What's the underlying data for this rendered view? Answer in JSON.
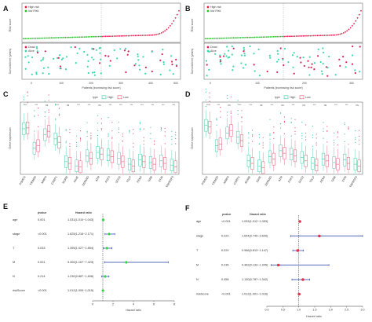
{
  "panels": {
    "A": {
      "label": "A",
      "top": {
        "ylabel": "Risk score",
        "legend": [
          "High risk",
          "low Risk"
        ],
        "xlabel": "Patients (increasing risk socre)",
        "xticks": [
          "0",
          "100",
          "200",
          "300",
          "400",
          "500"
        ]
      },
      "bottom": {
        "ylabel": "Survival time (years)",
        "legend": [
          "Dead",
          "Alive"
        ]
      }
    },
    "B": {
      "label": "B",
      "top": {
        "ylabel": "Risk score",
        "legend": [
          "High risk",
          "low Risk"
        ],
        "xlabel": "Patients (increasing risk socre)",
        "xticks": [
          "0",
          "100",
          "200",
          "300"
        ]
      },
      "bottom": {
        "ylabel": "Survival time (years)",
        "legend": [
          "Dead",
          "Alive"
        ]
      }
    },
    "C": {
      "label": "C",
      "ylabel": "Gene expression",
      "legend_title": "type",
      "legend": [
        "High",
        "Low"
      ]
    },
    "D": {
      "label": "D",
      "ylabel": "Gene expression",
      "legend_title": "type",
      "legend": [
        "High",
        "Low"
      ]
    },
    "E": {
      "label": "E",
      "head_p": "pvalue",
      "head_hr": "Hazard ratio",
      "xlabel": "Hazard ratio",
      "xticks": [
        "0",
        "2",
        "4",
        "6",
        "8"
      ]
    },
    "F": {
      "label": "F",
      "head_p": "pvalue",
      "head_hr": "Hazard ratio",
      "xlabel": "Hazard ratio",
      "xticks": [
        "0.0",
        "0.5",
        "1.0",
        "1.5",
        "2.0",
        "2.5",
        "3.0"
      ]
    }
  },
  "genes": [
    "PSMD2",
    "TRIM26",
    "MMP9",
    "CSRP1",
    "RORB",
    "IGHE",
    "SERMID",
    "ATM",
    "FGF3",
    "SCG2",
    "TSLP",
    "FEN4",
    "GRB",
    "STIN",
    "TNFRSF9"
  ],
  "colors": {
    "high": "#e31a4a",
    "low": "#2db82d",
    "alive": "#3ed6b0",
    "dead": "#d6245a",
    "forest_e": "#2fcf3f",
    "forest_f": "#e0324a",
    "ci": "#1f3aa8",
    "boxC_high": "#3cc8a8",
    "boxC_low": "#e05870"
  },
  "chart_data": [
    {
      "panel": "A",
      "type": "scatter",
      "ylabel": "Risk score",
      "xlabel": "Patients (increasing risk socre)",
      "xlim": [
        0,
        510
      ],
      "ylim": [
        0,
        14
      ],
      "cutoff": 255,
      "n": 510,
      "legend": [
        "High risk",
        "low Risk"
      ]
    },
    {
      "panel": "B",
      "type": "scatter",
      "ylabel": "Risk score",
      "xlabel": "Patients (increasing risk socre)",
      "xlim": [
        0,
        330
      ],
      "ylim": [
        0,
        14
      ],
      "cutoff": 165,
      "n": 330,
      "legend": [
        "High risk",
        "low Risk"
      ]
    },
    {
      "panel": "C",
      "type": "box",
      "ylabel": "Gene expression",
      "legend": [
        "High",
        "Low"
      ],
      "categories": [
        "PSMD2",
        "TRIM26",
        "MMP9",
        "CSRP1",
        "RORB",
        "IGHE",
        "SERMID",
        "ATM",
        "FGF3",
        "SCG2",
        "TSLP",
        "FEN4",
        "GRB",
        "STIN",
        "TNFRSF9"
      ],
      "series": [
        {
          "name": "High",
          "medians": [
            5.4,
            3.1,
            4.7,
            4.2,
            1.5,
            1.0,
            2.2,
            2.6,
            2.3,
            1.9,
            1.2,
            1.7,
            1.4,
            1.6,
            1.1
          ]
        },
        {
          "name": "Low",
          "medians": [
            5.5,
            3.4,
            5.1,
            3.8,
            1.3,
            0.9,
            1.9,
            2.4,
            2.1,
            1.5,
            1.0,
            1.5,
            1.2,
            1.3,
            0.9
          ]
        }
      ],
      "significance": [
        "***",
        "***",
        "ns",
        "***",
        "ns",
        "***",
        "***",
        "ns",
        "***",
        "***",
        "***",
        "***",
        "***",
        "***",
        "***"
      ]
    },
    {
      "panel": "D",
      "type": "box",
      "ylabel": "Gene expression",
      "legend": [
        "High",
        "Low"
      ],
      "categories": [
        "PSMD2",
        "TRIM26",
        "MMP9",
        "CSRP1",
        "RORB",
        "IGHE",
        "SERMID",
        "ATM",
        "FGF3",
        "SCG2",
        "TSLP",
        "FEN4",
        "GRB",
        "STIN",
        "TNFRSF9"
      ],
      "series": [
        {
          "name": "High",
          "medians": [
            5.8,
            3.4,
            4.9,
            4.4,
            1.6,
            1.0,
            2.1,
            2.8,
            2.4,
            2.0,
            1.3,
            1.8,
            1.4,
            1.7,
            1.2
          ]
        },
        {
          "name": "Low",
          "medians": [
            5.6,
            3.6,
            5.2,
            4.0,
            1.3,
            0.8,
            1.8,
            2.5,
            2.2,
            1.6,
            1.1,
            1.6,
            1.2,
            1.3,
            1.0
          ]
        }
      ],
      "significance": [
        "***",
        "***",
        "ns",
        "***",
        "***",
        "ns",
        "***",
        "ns",
        "***",
        "ns",
        "***",
        "ns",
        "***",
        "***",
        "ns"
      ]
    },
    {
      "panel": "E",
      "type": "forest",
      "xlabel": "Hazard ratio",
      "xlim": [
        0,
        8
      ],
      "ref": 1,
      "rows": [
        {
          "var": "age",
          "p": "0.001",
          "hr_text": "1.031(1.010~1.043)",
          "hr": 1.031,
          "lo": 1.01,
          "hi": 1.043
        },
        {
          "var": "stage",
          "p": "<0.001",
          "hr_text": "1.625(1.216~2.171)",
          "hr": 1.625,
          "lo": 1.216,
          "hi": 2.171
        },
        {
          "var": "T",
          "p": "0.033",
          "hr_text": "1.395(1.027~1.894)",
          "hr": 1.395,
          "lo": 1.027,
          "hi": 1.894
        },
        {
          "var": "M",
          "p": "0.001",
          "hr_text": "3.300(1.167~7.423)",
          "hr": 3.3,
          "lo": 1.167,
          "hi": 7.423
        },
        {
          "var": "N",
          "p": "0.214",
          "hr_text": "1.230(0.887~1.606)",
          "hr": 1.23,
          "lo": 0.887,
          "hi": 1.606
        },
        {
          "var": "riskScore",
          "p": "<0.001",
          "hr_text": "1.012(1.009~1.015)",
          "hr": 1.012,
          "lo": 1.009,
          "hi": 1.015
        }
      ]
    },
    {
      "panel": "F",
      "type": "forest",
      "xlabel": "Hazard ratio",
      "xlim": [
        0,
        3
      ],
      "ref": 1,
      "rows": [
        {
          "var": "age",
          "p": "<0.001",
          "hr_text": "1.033(1.012~1.053)",
          "hr": 1.033,
          "lo": 1.012,
          "hi": 1.053
        },
        {
          "var": "stage",
          "p": "0.220",
          "hr_text": "1.644(0.749~3.609)",
          "hr": 1.644,
          "lo": 0.749,
          "hi": 3.609
        },
        {
          "var": "T",
          "p": "0.220",
          "hr_text": "0.966(0.813~1.147)",
          "hr": 0.966,
          "lo": 0.813,
          "hi": 1.147
        },
        {
          "var": "M",
          "p": "0.235",
          "hr_text": "0.362(0.133~1.945)",
          "hr": 0.362,
          "lo": 0.133,
          "hi": 1.945
        },
        {
          "var": "N",
          "p": "0.458",
          "hr_text": "1.130(0.787~1.342)",
          "hr": 1.13,
          "lo": 0.787,
          "hi": 1.342
        },
        {
          "var": "riskScore",
          "p": "<0.001",
          "hr_text": "1.012(1.001~1.016)",
          "hr": 1.012,
          "lo": 1.001,
          "hi": 1.016
        }
      ]
    }
  ]
}
